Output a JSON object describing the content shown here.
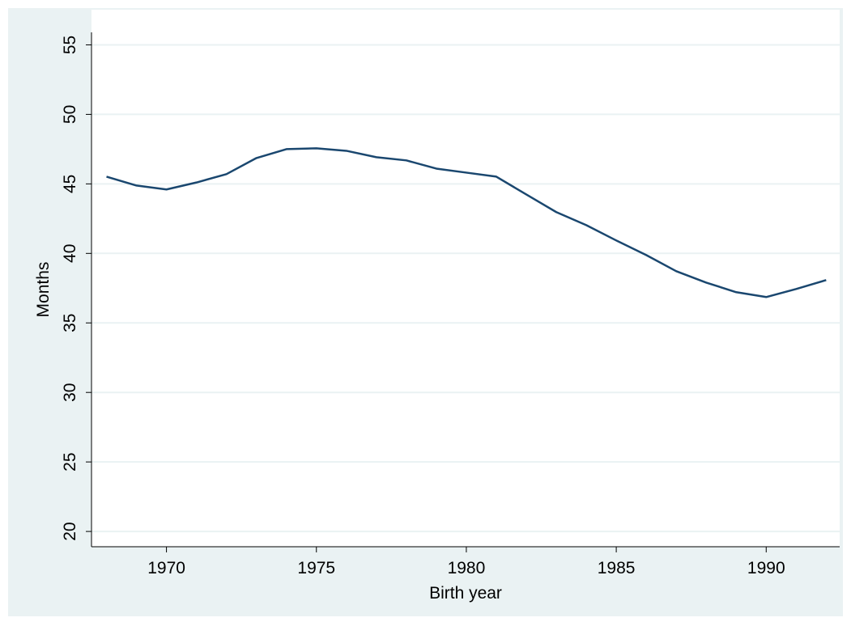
{
  "chart_data": {
    "type": "line",
    "xlabel": "Birth year",
    "ylabel": "Months",
    "x": [
      1968,
      1969,
      1970,
      1971,
      1972,
      1973,
      1974,
      1975,
      1976,
      1977,
      1978,
      1979,
      1980,
      1981,
      1982,
      1983,
      1984,
      1985,
      1986,
      1987,
      1988,
      1989,
      1990,
      1991,
      1992
    ],
    "series": [
      {
        "color": "#1a476f",
        "values": [
          45.52,
          44.88,
          44.6,
          45.1,
          45.7,
          46.86,
          47.5,
          47.56,
          47.38,
          46.92,
          46.69,
          46.1,
          45.81,
          45.52,
          44.24,
          42.97,
          42.03,
          40.93,
          39.88,
          38.72,
          37.9,
          37.21,
          36.86,
          37.44,
          38.08
        ]
      }
    ],
    "xlim": [
      1967.5,
      1992.45
    ],
    "xticks": [
      1970,
      1975,
      1980,
      1985,
      1990
    ],
    "ylim": [
      18.9,
      55.9
    ],
    "yticks": [
      20,
      25,
      30,
      35,
      40,
      45,
      50,
      55
    ],
    "grid": true
  }
}
